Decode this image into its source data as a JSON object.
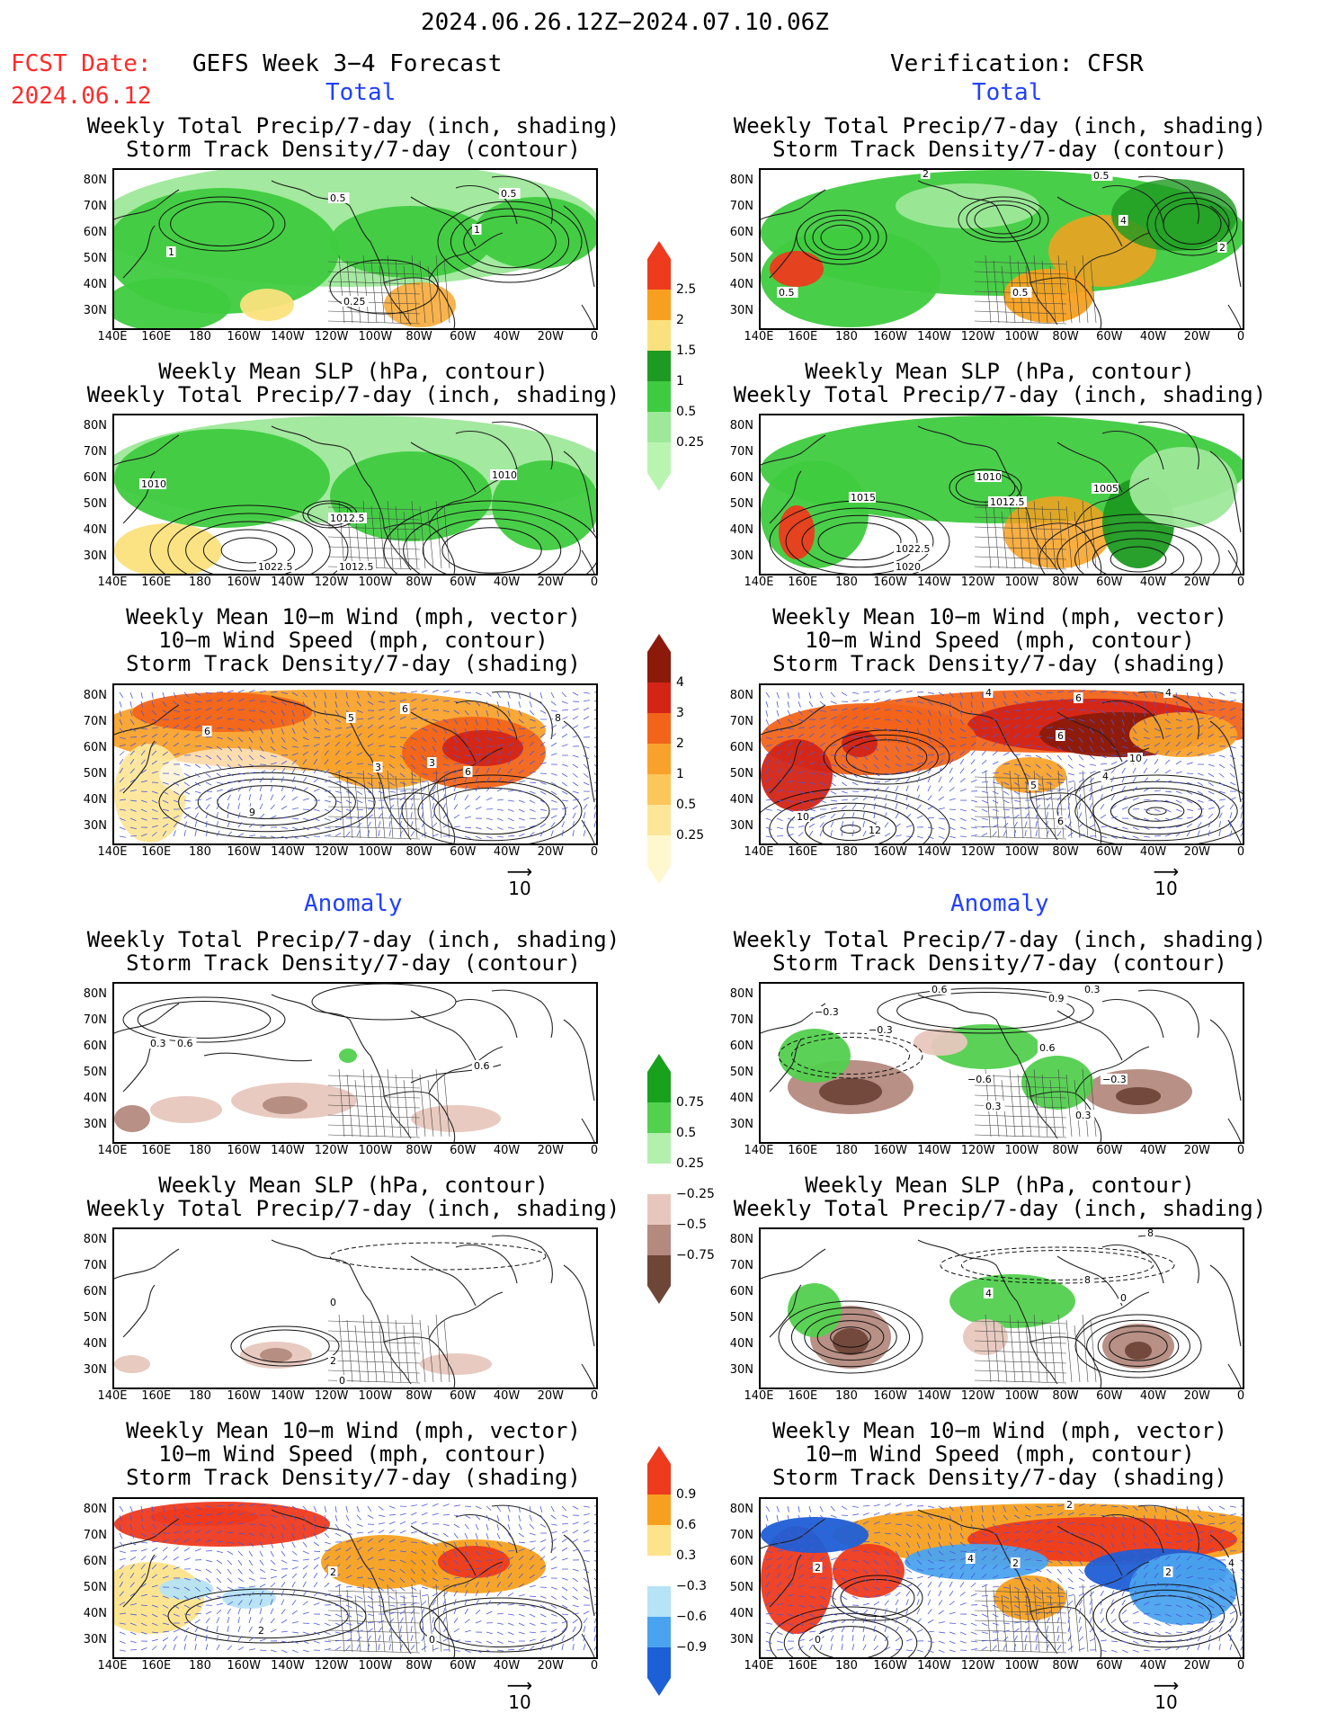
{
  "header": {
    "date_range": "2024.06.26.12Z−2024.07.10.06Z",
    "fcst_label": "FCST Date:",
    "fcst_date": "2024.06.12",
    "left_title": "GEFS Week 3−4 Forecast",
    "right_title": "Verification: CFSR"
  },
  "sections": {
    "total": "Total",
    "anomaly": "Anomaly"
  },
  "titles": {
    "precip_storm": [
      "Weekly Total Precip/7-day (inch, shading)",
      "Storm Track Density/7-day (contour)"
    ],
    "slp_precip": [
      "Weekly Mean SLP (hPa, contour)",
      "Weekly Total Precip/7-day (inch, shading)"
    ],
    "wind": [
      "Weekly Mean 10−m Wind (mph, vector)",
      "10−m Wind Speed (mph, contour)",
      "Storm Track Density/7-day (shading)"
    ]
  },
  "axes": {
    "lat": [
      "80N",
      "70N",
      "60N",
      "50N",
      "40N",
      "30N"
    ],
    "lon": [
      "140E",
      "160E",
      "180",
      "160W",
      "140W",
      "120W",
      "100W",
      "80W",
      "60W",
      "40W",
      "20W",
      "0"
    ]
  },
  "vector_ref": {
    "arrow": "⟶",
    "value": "10"
  },
  "colorbars": {
    "precip_total": {
      "labels": [
        "2.5",
        "2",
        "1.5",
        "1",
        "0.5",
        "0.25"
      ],
      "colors": [
        "#ee3a1d",
        "#f7a01f",
        "#fbe17d",
        "#1d9a21",
        "#3fcb3f",
        "#9ee89a",
        "#b9f5b0"
      ]
    },
    "storm_total": {
      "labels": [
        "4",
        "3",
        "2",
        "1",
        "0.5",
        "0.25"
      ],
      "colors": [
        "#8b1a0a",
        "#d32416",
        "#f26419",
        "#f9a22b",
        "#fcc65a",
        "#fde69a",
        "#fff8cf"
      ]
    },
    "precip_anom": {
      "labels": [
        "0.75",
        "0.5",
        "0.25",
        "−0.25",
        "−0.5",
        "−0.75"
      ],
      "colors": [
        "#18a11c",
        "#52d04e",
        "#b3f0ae",
        "#ffffff",
        "#e7c7bd",
        "#b48a7e",
        "#6e4638"
      ]
    },
    "storm_anom": {
      "labels": [
        "0.9",
        "0.6",
        "0.3",
        "−0.3",
        "−0.6",
        "−0.9"
      ],
      "colors": [
        "#ee3a1d",
        "#f7a01f",
        "#fde38b",
        "#ffffff",
        "#b6e3f5",
        "#4aa3ee",
        "#1d5fd6"
      ]
    }
  },
  "contour_labels": {
    "p1": [
      "0.5",
      "0.5",
      "1",
      "1",
      "0.25"
    ],
    "p2": [
      "2",
      "0.5",
      "4",
      "2",
      "0.5",
      "0.5"
    ],
    "p3": [
      "1010",
      "1010",
      "1012.5",
      "1022.5",
      "1012.5"
    ],
    "p4": [
      "1015",
      "1010",
      "1012.5",
      "1005",
      "1022.5",
      "1020"
    ],
    "p5": [
      "6",
      "6",
      "5",
      "3",
      "6",
      "9",
      "3",
      "8"
    ],
    "p6": [
      "4",
      "6",
      "4",
      "6",
      "10",
      "4",
      "10",
      "12",
      "6",
      "5"
    ],
    "p7": [
      "0.3",
      "0.6",
      "0.6"
    ],
    "p8": [
      "0.6",
      "0.3",
      "0.9",
      "−0.3",
      "−0.3",
      "−0.6",
      "0.6",
      "−0.3",
      "0.3",
      "0.3"
    ],
    "p9": [
      "0",
      "2",
      "0"
    ],
    "p10": [
      "8",
      "8",
      "4",
      "0"
    ],
    "p11": [
      "2",
      "2",
      "0"
    ],
    "p12": [
      "2",
      "4",
      "2",
      "2",
      "2",
      "4",
      "0"
    ]
  }
}
